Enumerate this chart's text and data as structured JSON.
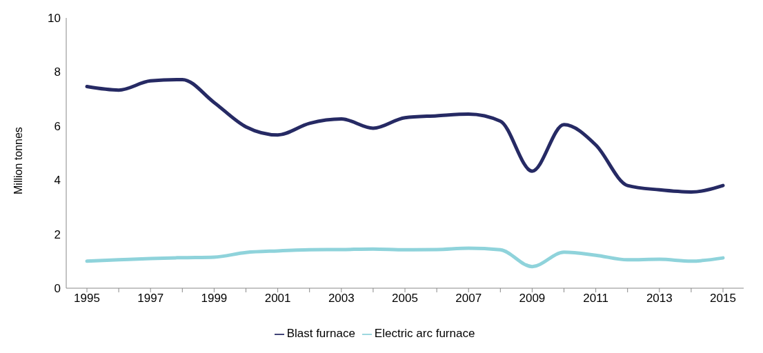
{
  "chart_data": {
    "type": "line",
    "ylabel": "Million tonnes",
    "categories": [
      "1995",
      null,
      "1997",
      null,
      "1999",
      null,
      "2001",
      null,
      "2003",
      null,
      "2005",
      null,
      "2007",
      null,
      "2009",
      null,
      "2011",
      null,
      "2013",
      null,
      "2015"
    ],
    "series": [
      {
        "name": "Blast furnace",
        "color": "#262a64",
        "values": [
          7.46,
          7.33,
          7.67,
          7.72,
          6.87,
          5.97,
          5.67,
          6.1,
          6.26,
          5.92,
          6.31,
          6.38,
          6.44,
          6.18,
          4.33,
          6.05,
          5.3,
          3.8,
          3.64,
          3.56,
          3.8
        ]
      },
      {
        "name": "Electric arc furnace",
        "color": "#8fd3db",
        "values": [
          1.0,
          1.05,
          1.1,
          1.13,
          1.15,
          1.32,
          1.38,
          1.42,
          1.43,
          1.45,
          1.42,
          1.43,
          1.48,
          1.42,
          0.8,
          1.33,
          1.22,
          1.05,
          1.07,
          1.0,
          1.12
        ]
      }
    ],
    "ylim": [
      0,
      10
    ],
    "yticks": [
      0,
      2,
      4,
      6,
      8,
      10
    ],
    "grid": false,
    "legend": "bottom",
    "marker": "none",
    "line_style": "solid"
  }
}
